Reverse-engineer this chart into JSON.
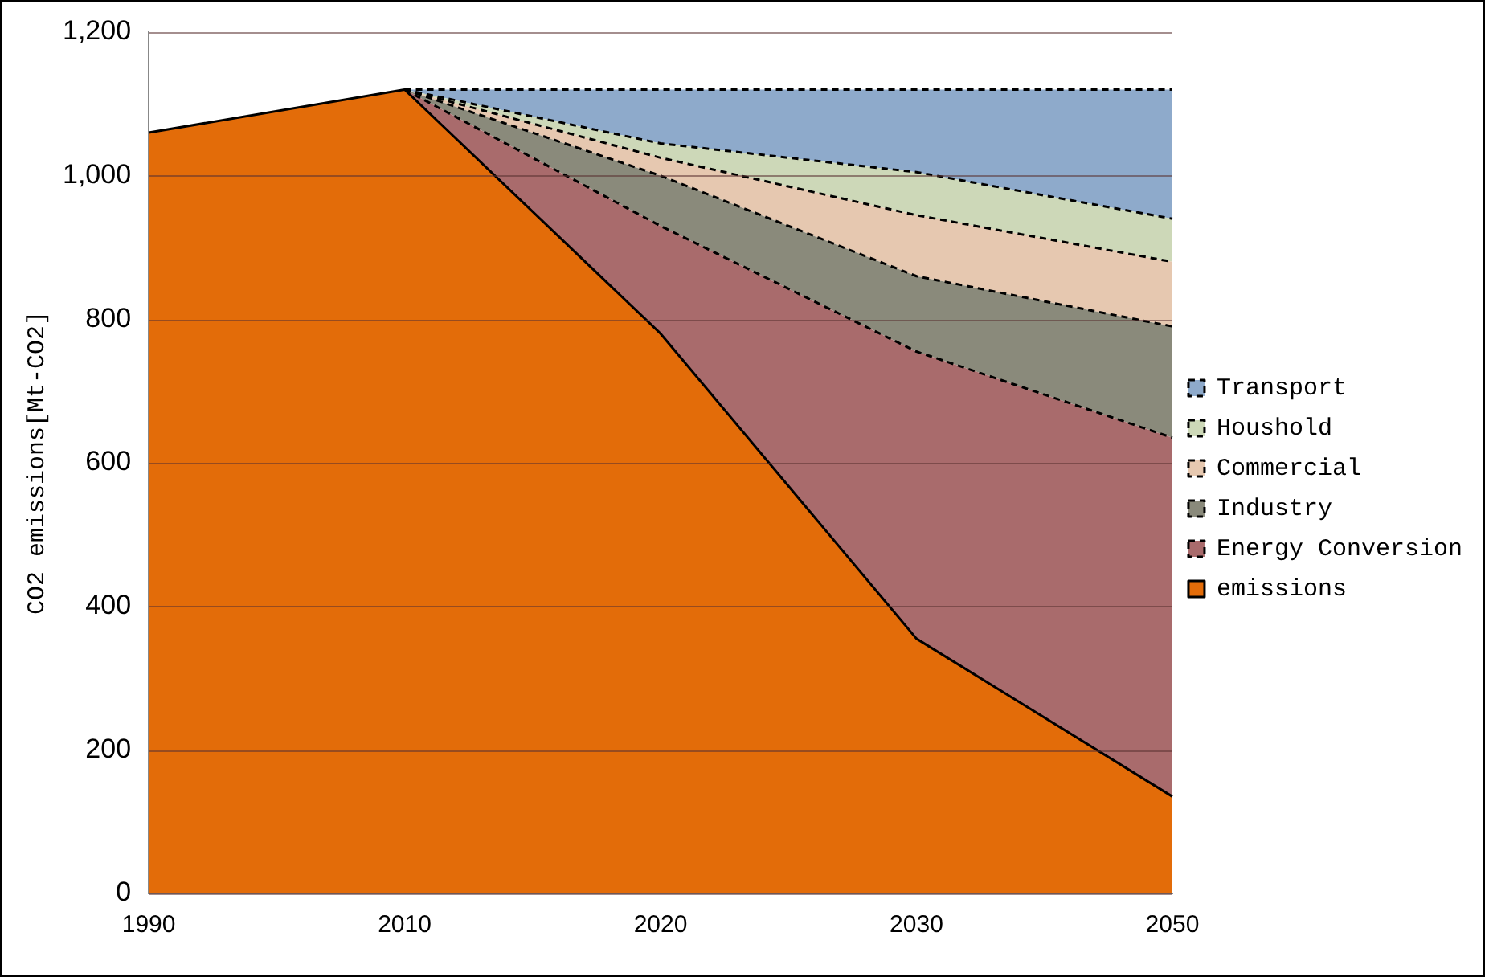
{
  "chart_data": {
    "type": "area",
    "stacked": true,
    "ylabel": "CO2 emissions[Mt-CO2]",
    "categories": [
      "1990",
      "2010",
      "2020",
      "2030",
      "2050"
    ],
    "series": [
      {
        "name": "emissions",
        "color": "#e36c09",
        "line_style": "solid",
        "values": [
          1060,
          1120,
          780,
          355,
          135
        ]
      },
      {
        "name": "Energy Conversion",
        "color": "#a96b6c",
        "line_style": "dashed",
        "values": [
          null,
          0,
          150,
          400,
          500
        ]
      },
      {
        "name": "Industry",
        "color": "#8a8a7b",
        "line_style": "dashed",
        "values": [
          null,
          0,
          70,
          105,
          155
        ]
      },
      {
        "name": "Commercial",
        "color": "#e6c8b0",
        "line_style": "dashed",
        "values": [
          null,
          0,
          25,
          85,
          90
        ]
      },
      {
        "name": "Houshold",
        "color": "#cdd8b8",
        "line_style": "dashed",
        "values": [
          null,
          0,
          20,
          60,
          60
        ]
      },
      {
        "name": "Transport",
        "color": "#8eaacb",
        "line_style": "dashed",
        "values": [
          null,
          0,
          75,
          115,
          180
        ]
      }
    ],
    "ylim": [
      0,
      1200
    ],
    "yticks": [
      0,
      200,
      400,
      600,
      800,
      {
        "value": 1000,
        "label": "1,000"
      },
      {
        "value": 1200,
        "label": "1,200"
      }
    ],
    "grid": "y",
    "legend": "right"
  }
}
